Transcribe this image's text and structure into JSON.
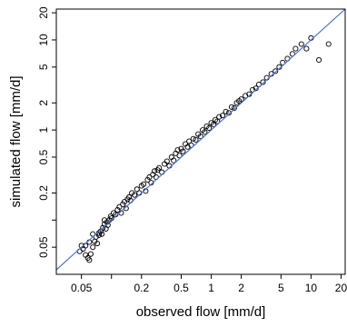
{
  "chart_data": {
    "type": "scatter",
    "title": "",
    "xlabel": "observed flow [mm/d]",
    "ylabel": "simulated flow [mm/d]",
    "x_scale": "log",
    "y_scale": "log",
    "xlim": [
      0.028,
      22
    ],
    "ylim": [
      0.025,
      22
    ],
    "x_ticks": [
      {
        "value": 0.05,
        "label": "0.05"
      },
      {
        "value": 0.1,
        "label": ""
      },
      {
        "value": 0.2,
        "label": "0.2"
      },
      {
        "value": 0.5,
        "label": "0.5"
      },
      {
        "value": 1,
        "label": "1"
      },
      {
        "value": 2,
        "label": "2"
      },
      {
        "value": 5,
        "label": "5"
      },
      {
        "value": 10,
        "label": "10"
      },
      {
        "value": 20,
        "label": "20"
      }
    ],
    "y_ticks": [
      {
        "value": 0.05,
        "label": "0.05"
      },
      {
        "value": 0.1,
        "label": ""
      },
      {
        "value": 0.2,
        "label": "0.2"
      },
      {
        "value": 0.5,
        "label": "0.5"
      },
      {
        "value": 1,
        "label": "1"
      },
      {
        "value": 2,
        "label": "2"
      },
      {
        "value": 5,
        "label": "5"
      },
      {
        "value": 10,
        "label": "10"
      },
      {
        "value": 20,
        "label": "20"
      }
    ],
    "grid": false,
    "marker": "open circle",
    "marker_color": "#000000",
    "reference_line": {
      "kind": "1:1",
      "color": "#4f74c9"
    },
    "series": [
      {
        "points": [
          [
            0.048,
            0.045
          ],
          [
            0.05,
            0.052
          ],
          [
            0.052,
            0.048
          ],
          [
            0.055,
            0.041
          ],
          [
            0.058,
            0.038
          ],
          [
            0.06,
            0.036
          ],
          [
            0.062,
            0.042
          ],
          [
            0.065,
            0.05
          ],
          [
            0.068,
            0.058
          ],
          [
            0.07,
            0.065
          ],
          [
            0.072,
            0.055
          ],
          [
            0.075,
            0.068
          ],
          [
            0.078,
            0.075
          ],
          [
            0.08,
            0.07
          ],
          [
            0.082,
            0.082
          ],
          [
            0.085,
            0.09
          ],
          [
            0.088,
            0.08
          ],
          [
            0.09,
            0.095
          ],
          [
            0.092,
            0.088
          ],
          [
            0.095,
            0.1
          ],
          [
            0.098,
            0.11
          ],
          [
            0.1,
            0.105
          ],
          [
            0.105,
            0.12
          ],
          [
            0.11,
            0.115
          ],
          [
            0.115,
            0.13
          ],
          [
            0.12,
            0.14
          ],
          [
            0.125,
            0.12
          ],
          [
            0.13,
            0.15
          ],
          [
            0.135,
            0.16
          ],
          [
            0.14,
            0.135
          ],
          [
            0.145,
            0.17
          ],
          [
            0.15,
            0.18
          ],
          [
            0.155,
            0.165
          ],
          [
            0.16,
            0.2
          ],
          [
            0.17,
            0.19
          ],
          [
            0.18,
            0.22
          ],
          [
            0.19,
            0.2
          ],
          [
            0.2,
            0.24
          ],
          [
            0.21,
            0.25
          ],
          [
            0.22,
            0.21
          ],
          [
            0.23,
            0.28
          ],
          [
            0.24,
            0.3
          ],
          [
            0.25,
            0.26
          ],
          [
            0.26,
            0.32
          ],
          [
            0.27,
            0.35
          ],
          [
            0.28,
            0.3
          ],
          [
            0.29,
            0.36
          ],
          [
            0.3,
            0.38
          ],
          [
            0.32,
            0.34
          ],
          [
            0.34,
            0.42
          ],
          [
            0.36,
            0.45
          ],
          [
            0.38,
            0.4
          ],
          [
            0.4,
            0.5
          ],
          [
            0.42,
            0.46
          ],
          [
            0.44,
            0.55
          ],
          [
            0.46,
            0.6
          ],
          [
            0.48,
            0.52
          ],
          [
            0.5,
            0.62
          ],
          [
            0.52,
            0.58
          ],
          [
            0.55,
            0.7
          ],
          [
            0.58,
            0.65
          ],
          [
            0.6,
            0.75
          ],
          [
            0.63,
            0.68
          ],
          [
            0.66,
            0.8
          ],
          [
            0.7,
            0.78
          ],
          [
            0.74,
            0.9
          ],
          [
            0.78,
            0.85
          ],
          [
            0.82,
            1.0
          ],
          [
            0.86,
            0.95
          ],
          [
            0.9,
            1.1
          ],
          [
            0.95,
            1.05
          ],
          [
            1.0,
            1.2
          ],
          [
            1.05,
            1.15
          ],
          [
            1.1,
            1.3
          ],
          [
            1.15,
            1.25
          ],
          [
            1.2,
            1.4
          ],
          [
            1.3,
            1.45
          ],
          [
            1.4,
            1.6
          ],
          [
            1.5,
            1.55
          ],
          [
            1.6,
            1.8
          ],
          [
            1.7,
            1.75
          ],
          [
            1.8,
            2.0
          ],
          [
            1.9,
            2.1
          ],
          [
            2.0,
            2.2
          ],
          [
            2.2,
            2.4
          ],
          [
            2.4,
            2.5
          ],
          [
            2.6,
            2.8
          ],
          [
            2.8,
            2.9
          ],
          [
            3.0,
            3.2
          ],
          [
            3.3,
            3.4
          ],
          [
            3.6,
            3.8
          ],
          [
            4.0,
            4.2
          ],
          [
            4.4,
            4.5
          ],
          [
            4.8,
            5.0
          ],
          [
            5.2,
            5.6
          ],
          [
            5.8,
            6.2
          ],
          [
            6.5,
            7.0
          ],
          [
            7.0,
            8.0
          ],
          [
            8.0,
            9.0
          ],
          [
            9.0,
            8.0
          ],
          [
            10.0,
            10.5
          ],
          [
            12.0,
            6.0
          ],
          [
            15.0,
            9.0
          ],
          [
            0.055,
            0.052
          ],
          [
            0.06,
            0.057
          ],
          [
            0.065,
            0.07
          ],
          [
            0.075,
            0.072
          ],
          [
            0.085,
            0.1
          ]
        ]
      }
    ]
  }
}
